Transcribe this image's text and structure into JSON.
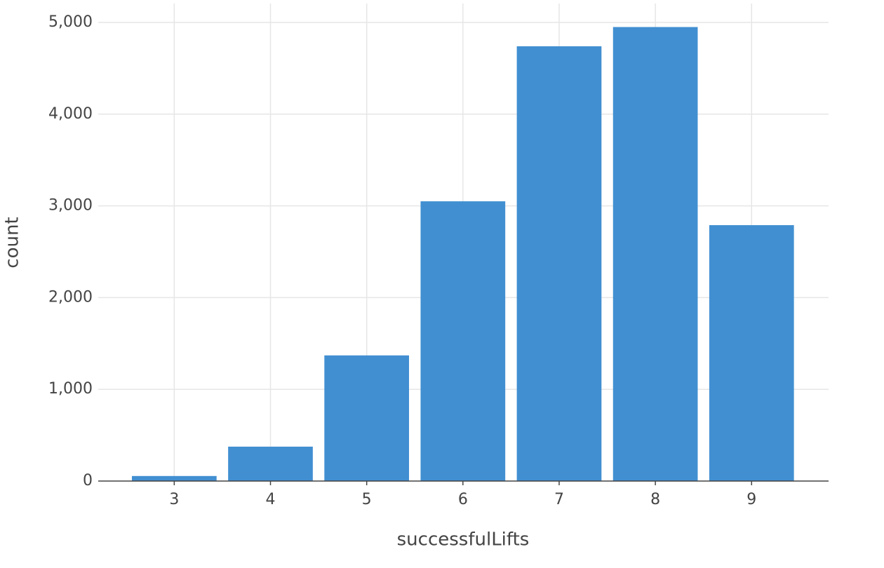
{
  "chart_data": {
    "type": "bar",
    "x_label": "successfulLifts",
    "y_label": "count",
    "x": [
      3,
      4,
      5,
      6,
      7,
      8,
      9
    ],
    "values": [
      55,
      375,
      1370,
      3050,
      4740,
      4950,
      2790
    ],
    "color": "#418fd1",
    "xlim": [
      2.21,
      9.8
    ],
    "xticks": [
      3,
      4,
      5,
      6,
      7,
      8,
      9
    ],
    "ylim": [
      0,
      5000
    ],
    "yticks": [
      0,
      {
        "value": 1000,
        "label": "1,000"
      },
      {
        "value": 2000,
        "label": "2,000"
      },
      {
        "value": 3000,
        "label": "3,000"
      },
      {
        "value": 4000,
        "label": "4,000"
      },
      {
        "value": 5000,
        "label": "5,000"
      }
    ],
    "grid": true
  }
}
